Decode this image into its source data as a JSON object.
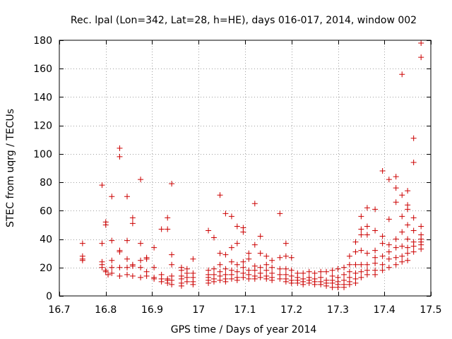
{
  "chart_data": {
    "type": "scatter",
    "title": "Rec. lpal (Lon=342, Lat=28, h=HE), days 016-017, 2014, window 002",
    "xlabel": "GPS time / Days of year 2014",
    "ylabel": "STEC from uqrg / TECUs",
    "xlim": [
      16.7,
      17.5
    ],
    "ylim": [
      0,
      180
    ],
    "xticks": [
      16.7,
      16.8,
      16.9,
      17.0,
      17.1,
      17.2,
      17.3,
      17.4,
      17.5
    ],
    "xtick_labels": [
      "16.7",
      "16.8",
      "16.9",
      "17",
      "17.1",
      "17.2",
      "17.3",
      "17.4",
      "17.5"
    ],
    "yticks": [
      0,
      20,
      40,
      60,
      80,
      100,
      120,
      140,
      160,
      180
    ],
    "ytick_labels": [
      "0",
      "20",
      "40",
      "60",
      "80",
      "100",
      "120",
      "140",
      "160",
      "180"
    ],
    "grid": true,
    "marker": "plus",
    "color": "#cc0000",
    "points": [
      [
        16.75,
        37
      ],
      [
        16.75,
        28
      ],
      [
        16.75,
        26
      ],
      [
        16.75,
        25
      ],
      [
        16.792,
        78
      ],
      [
        16.792,
        37
      ],
      [
        16.792,
        24
      ],
      [
        16.792,
        22
      ],
      [
        16.792,
        20
      ],
      [
        16.8,
        52
      ],
      [
        16.8,
        50
      ],
      [
        16.8,
        18
      ],
      [
        16.8,
        17
      ],
      [
        16.805,
        15
      ],
      [
        16.813,
        70
      ],
      [
        16.813,
        39
      ],
      [
        16.813,
        25
      ],
      [
        16.813,
        20
      ],
      [
        16.813,
        16
      ],
      [
        16.83,
        104
      ],
      [
        16.83,
        98
      ],
      [
        16.83,
        32
      ],
      [
        16.83,
        31
      ],
      [
        16.83,
        20
      ],
      [
        16.83,
        14
      ],
      [
        16.846,
        70
      ],
      [
        16.846,
        39
      ],
      [
        16.846,
        26
      ],
      [
        16.846,
        20
      ],
      [
        16.846,
        15
      ],
      [
        16.858,
        55
      ],
      [
        16.858,
        51
      ],
      [
        16.858,
        22
      ],
      [
        16.858,
        21
      ],
      [
        16.858,
        14
      ],
      [
        16.875,
        82
      ],
      [
        16.875,
        37
      ],
      [
        16.875,
        25
      ],
      [
        16.875,
        20
      ],
      [
        16.875,
        13
      ],
      [
        16.888,
        27
      ],
      [
        16.888,
        26
      ],
      [
        16.888,
        17
      ],
      [
        16.888,
        14
      ],
      [
        16.904,
        34
      ],
      [
        16.904,
        20
      ],
      [
        16.904,
        13
      ],
      [
        16.904,
        12
      ],
      [
        16.92,
        47
      ],
      [
        16.92,
        15
      ],
      [
        16.92,
        12
      ],
      [
        16.92,
        10
      ],
      [
        16.933,
        55
      ],
      [
        16.933,
        47
      ],
      [
        16.933,
        12
      ],
      [
        16.933,
        11
      ],
      [
        16.933,
        9
      ],
      [
        16.942,
        79
      ],
      [
        16.942,
        29
      ],
      [
        16.942,
        22
      ],
      [
        16.942,
        14
      ],
      [
        16.942,
        11
      ],
      [
        16.942,
        8
      ],
      [
        16.963,
        20
      ],
      [
        16.963,
        18
      ],
      [
        16.963,
        14
      ],
      [
        16.963,
        12
      ],
      [
        16.963,
        9
      ],
      [
        16.963,
        7
      ],
      [
        16.975,
        19
      ],
      [
        16.975,
        16
      ],
      [
        16.975,
        13
      ],
      [
        16.975,
        10
      ],
      [
        16.988,
        26
      ],
      [
        16.988,
        16
      ],
      [
        16.988,
        13
      ],
      [
        16.988,
        10
      ],
      [
        16.988,
        8
      ],
      [
        17.021,
        46
      ],
      [
        17.021,
        18
      ],
      [
        17.021,
        15
      ],
      [
        17.021,
        13
      ],
      [
        17.021,
        11
      ],
      [
        17.021,
        9
      ],
      [
        17.033,
        41
      ],
      [
        17.033,
        19
      ],
      [
        17.033,
        15
      ],
      [
        17.033,
        12
      ],
      [
        17.033,
        10
      ],
      [
        17.046,
        71
      ],
      [
        17.046,
        30
      ],
      [
        17.046,
        22
      ],
      [
        17.046,
        17
      ],
      [
        17.046,
        14
      ],
      [
        17.046,
        11
      ],
      [
        17.058,
        58
      ],
      [
        17.058,
        29
      ],
      [
        17.058,
        19
      ],
      [
        17.058,
        15
      ],
      [
        17.058,
        12
      ],
      [
        17.058,
        10
      ],
      [
        17.071,
        56
      ],
      [
        17.071,
        34
      ],
      [
        17.071,
        24
      ],
      [
        17.071,
        18
      ],
      [
        17.071,
        15
      ],
      [
        17.071,
        12
      ],
      [
        17.083,
        49
      ],
      [
        17.083,
        37
      ],
      [
        17.083,
        22
      ],
      [
        17.083,
        17
      ],
      [
        17.083,
        13
      ],
      [
        17.083,
        11
      ],
      [
        17.096,
        48
      ],
      [
        17.096,
        45
      ],
      [
        17.096,
        24
      ],
      [
        17.096,
        20
      ],
      [
        17.096,
        16
      ],
      [
        17.096,
        13
      ],
      [
        17.108,
        30
      ],
      [
        17.108,
        26
      ],
      [
        17.108,
        18
      ],
      [
        17.108,
        15
      ],
      [
        17.108,
        12
      ],
      [
        17.121,
        65
      ],
      [
        17.121,
        36
      ],
      [
        17.121,
        21
      ],
      [
        17.121,
        18
      ],
      [
        17.121,
        14
      ],
      [
        17.121,
        12
      ],
      [
        17.133,
        42
      ],
      [
        17.133,
        30
      ],
      [
        17.133,
        20
      ],
      [
        17.133,
        16
      ],
      [
        17.133,
        13
      ],
      [
        17.146,
        28
      ],
      [
        17.146,
        22
      ],
      [
        17.146,
        18
      ],
      [
        17.146,
        14
      ],
      [
        17.146,
        12
      ],
      [
        17.158,
        25
      ],
      [
        17.158,
        20
      ],
      [
        17.158,
        16
      ],
      [
        17.158,
        13
      ],
      [
        17.158,
        11
      ],
      [
        17.175,
        58
      ],
      [
        17.175,
        27
      ],
      [
        17.175,
        19
      ],
      [
        17.175,
        15
      ],
      [
        17.175,
        12
      ],
      [
        17.188,
        37
      ],
      [
        17.188,
        28
      ],
      [
        17.188,
        19
      ],
      [
        17.188,
        15
      ],
      [
        17.188,
        12
      ],
      [
        17.188,
        10
      ],
      [
        17.2,
        27
      ],
      [
        17.2,
        18
      ],
      [
        17.2,
        14
      ],
      [
        17.2,
        11
      ],
      [
        17.2,
        9
      ],
      [
        17.213,
        16
      ],
      [
        17.213,
        13
      ],
      [
        17.213,
        11
      ],
      [
        17.213,
        9
      ],
      [
        17.225,
        16
      ],
      [
        17.225,
        12
      ],
      [
        17.225,
        10
      ],
      [
        17.225,
        8
      ],
      [
        17.238,
        17
      ],
      [
        17.238,
        13
      ],
      [
        17.238,
        11
      ],
      [
        17.238,
        9
      ],
      [
        17.25,
        16
      ],
      [
        17.25,
        12
      ],
      [
        17.25,
        10
      ],
      [
        17.25,
        8
      ],
      [
        17.263,
        17
      ],
      [
        17.263,
        13
      ],
      [
        17.263,
        10
      ],
      [
        17.263,
        8
      ],
      [
        17.275,
        17
      ],
      [
        17.275,
        11
      ],
      [
        17.275,
        9
      ],
      [
        17.275,
        7
      ],
      [
        17.288,
        18
      ],
      [
        17.288,
        14
      ],
      [
        17.288,
        11
      ],
      [
        17.288,
        9
      ],
      [
        17.288,
        6
      ],
      [
        17.3,
        19
      ],
      [
        17.3,
        13
      ],
      [
        17.3,
        10
      ],
      [
        17.3,
        8
      ],
      [
        17.3,
        6
      ],
      [
        17.313,
        20
      ],
      [
        17.313,
        15
      ],
      [
        17.313,
        11
      ],
      [
        17.313,
        8
      ],
      [
        17.313,
        6
      ],
      [
        17.325,
        28
      ],
      [
        17.325,
        22
      ],
      [
        17.325,
        17
      ],
      [
        17.325,
        13
      ],
      [
        17.325,
        10
      ],
      [
        17.325,
        8
      ],
      [
        17.338,
        38
      ],
      [
        17.338,
        31
      ],
      [
        17.338,
        22
      ],
      [
        17.338,
        16
      ],
      [
        17.338,
        12
      ],
      [
        17.338,
        9
      ],
      [
        17.35,
        56
      ],
      [
        17.35,
        47
      ],
      [
        17.35,
        43
      ],
      [
        17.35,
        32
      ],
      [
        17.35,
        22
      ],
      [
        17.35,
        17
      ],
      [
        17.35,
        13
      ],
      [
        17.363,
        62
      ],
      [
        17.363,
        49
      ],
      [
        17.363,
        43
      ],
      [
        17.363,
        30
      ],
      [
        17.363,
        22
      ],
      [
        17.363,
        18
      ],
      [
        17.363,
        15
      ],
      [
        17.38,
        61
      ],
      [
        17.38,
        46
      ],
      [
        17.38,
        32
      ],
      [
        17.38,
        27
      ],
      [
        17.38,
        23
      ],
      [
        17.38,
        18
      ],
      [
        17.38,
        15
      ],
      [
        17.396,
        88
      ],
      [
        17.396,
        42
      ],
      [
        17.396,
        37
      ],
      [
        17.396,
        28
      ],
      [
        17.396,
        22
      ],
      [
        17.396,
        18
      ],
      [
        17.41,
        82
      ],
      [
        17.41,
        54
      ],
      [
        17.41,
        36
      ],
      [
        17.41,
        31
      ],
      [
        17.41,
        26
      ],
      [
        17.41,
        20
      ],
      [
        17.425,
        84
      ],
      [
        17.425,
        76
      ],
      [
        17.425,
        66
      ],
      [
        17.425,
        40
      ],
      [
        17.425,
        34
      ],
      [
        17.425,
        27
      ],
      [
        17.425,
        22
      ],
      [
        17.438,
        156
      ],
      [
        17.438,
        71
      ],
      [
        17.438,
        56
      ],
      [
        17.438,
        45
      ],
      [
        17.438,
        35
      ],
      [
        17.438,
        28
      ],
      [
        17.438,
        24
      ],
      [
        17.45,
        74
      ],
      [
        17.45,
        64
      ],
      [
        17.45,
        61
      ],
      [
        17.45,
        50
      ],
      [
        17.45,
        40
      ],
      [
        17.45,
        34
      ],
      [
        17.45,
        30
      ],
      [
        17.45,
        25
      ],
      [
        17.463,
        111
      ],
      [
        17.463,
        94
      ],
      [
        17.463,
        55
      ],
      [
        17.463,
        46
      ],
      [
        17.463,
        38
      ],
      [
        17.463,
        35
      ],
      [
        17.463,
        31
      ],
      [
        17.479,
        178
      ],
      [
        17.479,
        168
      ],
      [
        17.479,
        49
      ],
      [
        17.479,
        43
      ],
      [
        17.479,
        40
      ],
      [
        17.479,
        38
      ],
      [
        17.479,
        36
      ],
      [
        17.479,
        33
      ]
    ]
  }
}
